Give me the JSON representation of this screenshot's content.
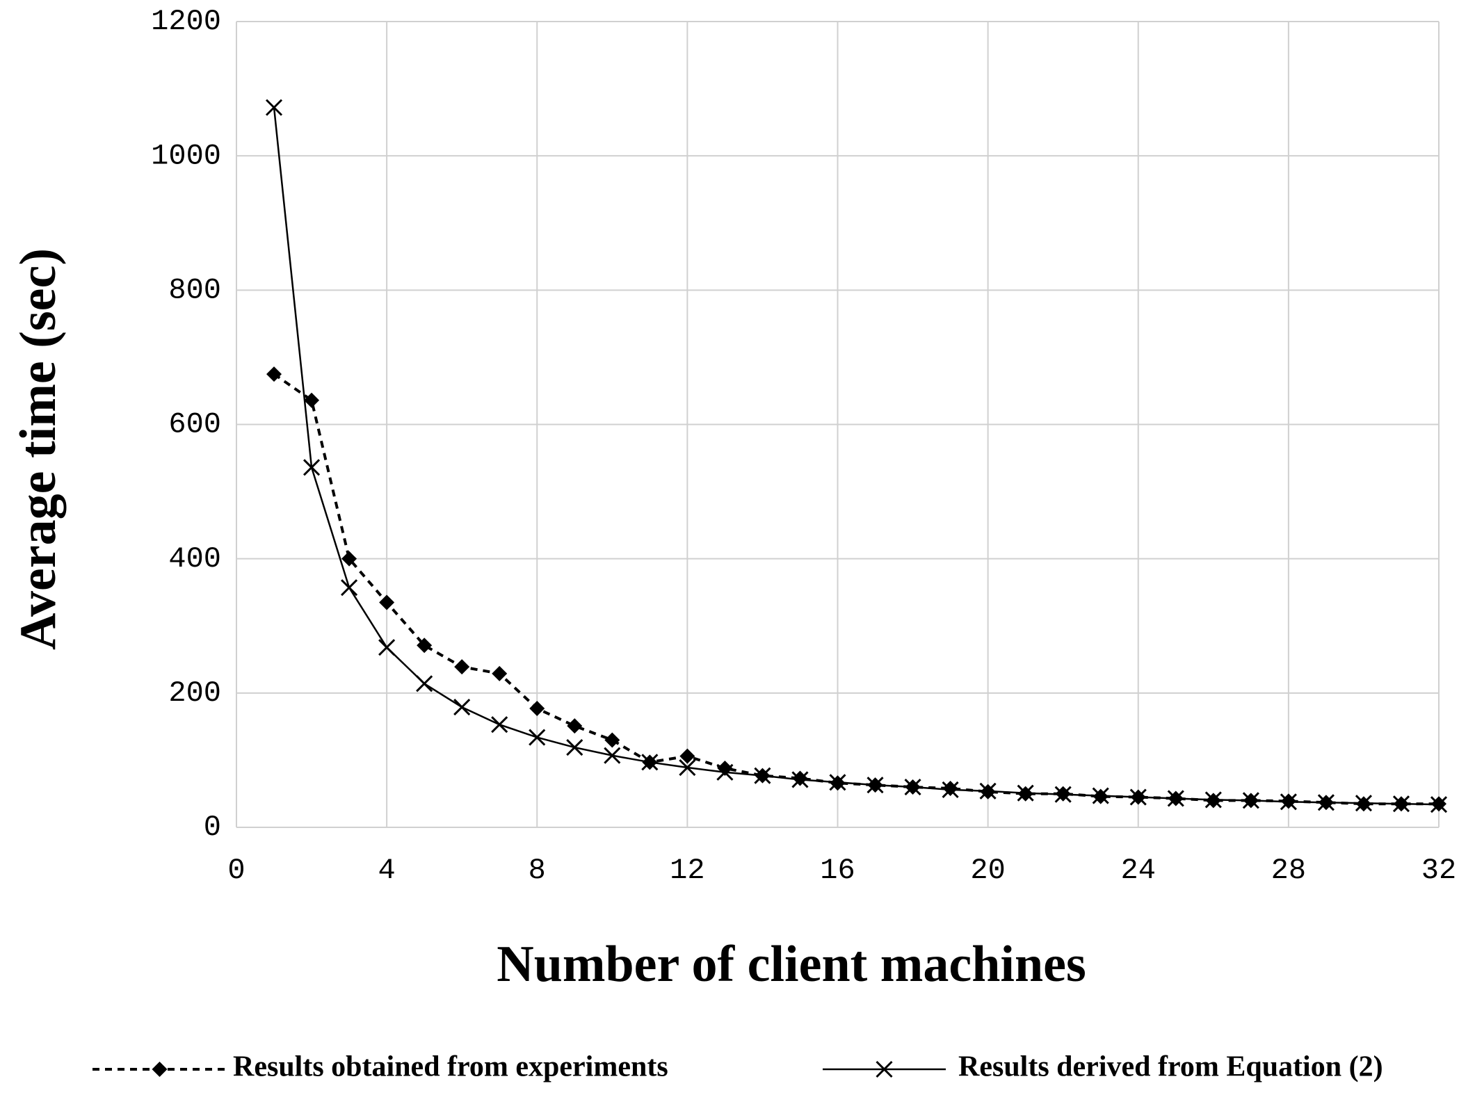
{
  "chart_data": {
    "type": "line",
    "x_label": "Number of client machines",
    "y_label": "Average time (sec)",
    "x": [
      1,
      2,
      3,
      4,
      5,
      6,
      7,
      8,
      9,
      10,
      11,
      12,
      13,
      14,
      15,
      16,
      17,
      18,
      19,
      20,
      21,
      22,
      23,
      24,
      25,
      26,
      27,
      28,
      29,
      30,
      31,
      32
    ],
    "series": [
      {
        "name": "Results obtained from experiments",
        "color": "#000000",
        "line_style": "dashed",
        "marker": "diamond",
        "values": [
          675,
          636,
          400,
          335,
          271,
          239,
          229,
          177,
          151,
          130,
          97,
          106,
          88,
          77,
          73,
          66,
          63,
          60,
          58,
          53,
          50,
          50,
          46,
          45,
          43,
          40,
          40,
          39,
          37,
          35,
          35,
          35
        ]
      },
      {
        "name": "Results derived from Equation (2)",
        "color": "#000000",
        "line_style": "solid",
        "marker": "x",
        "values": [
          1072,
          536,
          357,
          268,
          214,
          179,
          153,
          134,
          119,
          107,
          97,
          89,
          82,
          77,
          71,
          67,
          63,
          60,
          56,
          54,
          51,
          49,
          47,
          45,
          43,
          41,
          40,
          38,
          37,
          36,
          35,
          34
        ]
      }
    ],
    "xlim": [
      0,
      32
    ],
    "xticks": [
      0,
      4,
      8,
      12,
      16,
      20,
      24,
      28,
      32
    ],
    "ylim": [
      0,
      1200
    ],
    "yticks": [
      0,
      200,
      400,
      600,
      800,
      1000,
      1200
    ],
    "grid": true,
    "legend": "bottom"
  }
}
